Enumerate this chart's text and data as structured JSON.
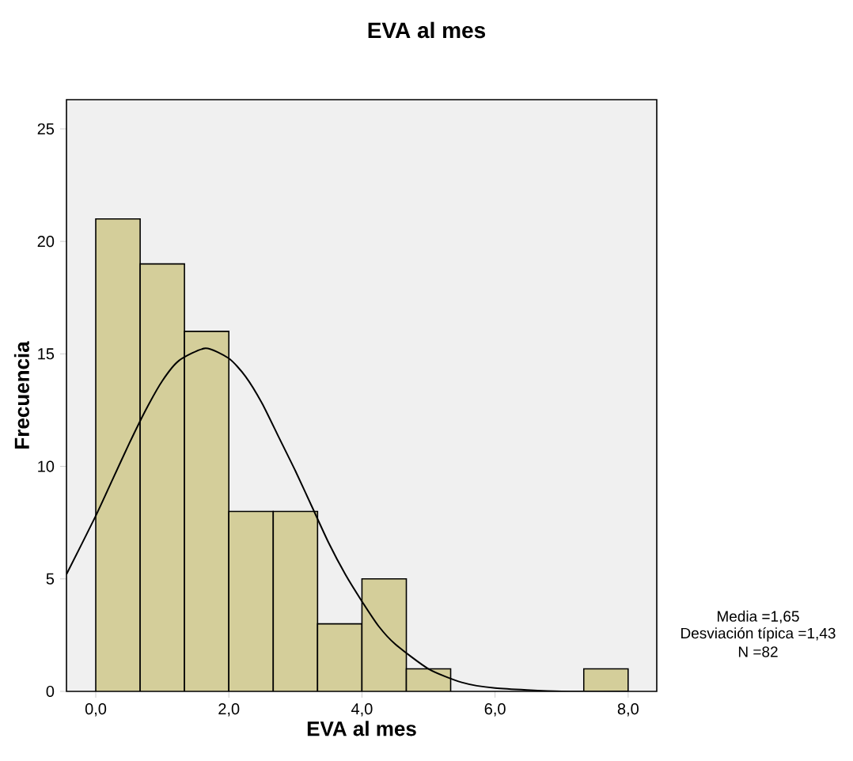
{
  "chart_data": {
    "type": "histogram",
    "title": "EVA al mes",
    "xlabel": "EVA al mes",
    "ylabel": "Frecuencia",
    "bins": [
      0,
      0.667,
      1.333,
      2,
      2.667,
      3.333,
      4,
      4.667,
      5.333,
      6,
      6.667,
      7.333,
      8
    ],
    "series": [
      {
        "color": "#d4ce9a",
        "values": [
          21,
          19,
          16,
          8,
          8,
          3,
          5,
          1,
          0,
          0,
          0,
          1
        ]
      },
      {
        "type": "line",
        "color": "#000000",
        "x": [
          -0.44,
          0,
          0.25,
          0.5,
          0.75,
          1,
          1.25,
          1.65,
          2,
          2.25,
          2.5,
          2.75,
          3,
          3.25,
          3.5,
          3.75,
          4,
          4.25,
          4.5,
          5,
          5.5,
          6,
          7,
          8
        ],
        "values": [
          5.2,
          7.8,
          9.4,
          11.0,
          12.5,
          13.8,
          14.7,
          15.25,
          14.8,
          14.0,
          12.8,
          11.3,
          9.8,
          8.2,
          6.6,
          5.2,
          4.0,
          2.9,
          2.1,
          1.0,
          0.4,
          0.15,
          0,
          0
        ]
      }
    ],
    "xlim": [
      -0.44,
      8.43
    ],
    "ylim": [
      0,
      26.3
    ],
    "xticks": [
      {
        "value": 0,
        "label": "0,0"
      },
      {
        "value": 2,
        "label": "2,0"
      },
      {
        "value": 4,
        "label": "4,0"
      },
      {
        "value": 6,
        "label": "6,0"
      },
      {
        "value": 8,
        "label": "8,0"
      }
    ],
    "yticks": [
      0,
      5,
      10,
      15,
      20,
      25
    ],
    "grid": false,
    "annotations": [
      "Media =1,65",
      "Desviación típica =1,43",
      "N =82"
    ]
  }
}
